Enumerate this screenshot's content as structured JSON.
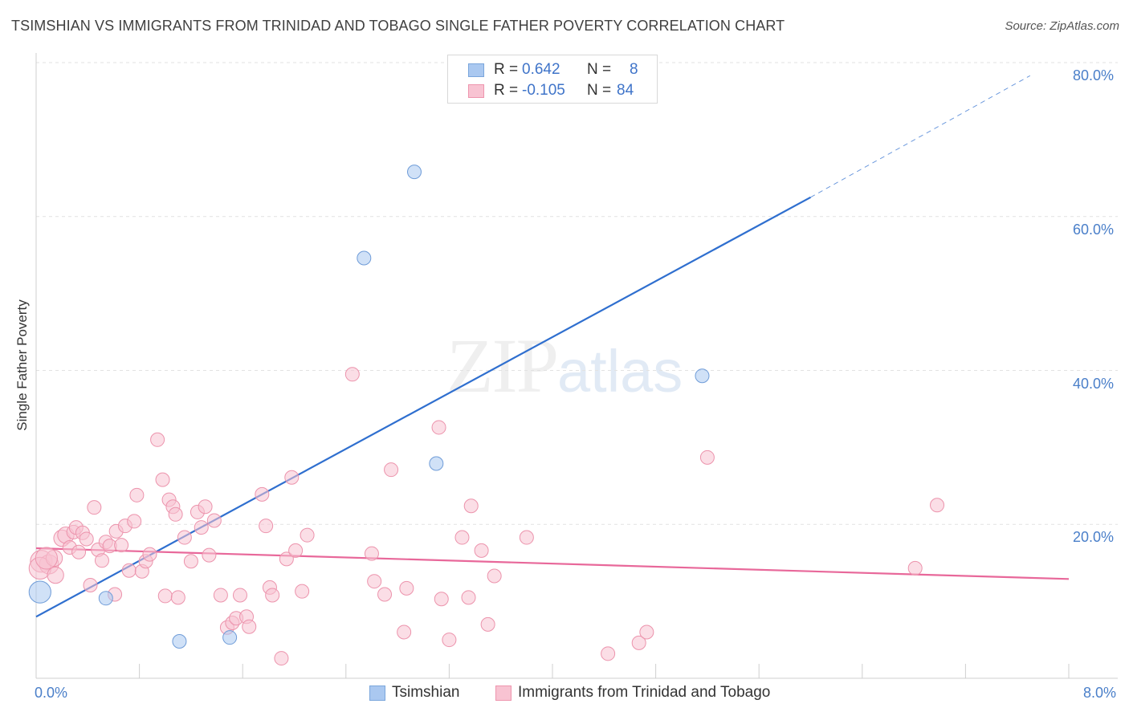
{
  "header": {
    "title": "TSIMSHIAN VS IMMIGRANTS FROM TRINIDAD AND TOBAGO SINGLE FATHER POVERTY CORRELATION CHART",
    "source": "Source: ZipAtlas.com"
  },
  "watermark": {
    "zip": "ZIP",
    "atlas": "atlas"
  },
  "stats": [
    {
      "r_label": "R =",
      "r_value": "0.642",
      "n_label": "N =",
      "n_value": "8",
      "color": "#aac8f0",
      "border": "#7aa6dc"
    },
    {
      "r_label": "R =",
      "r_value": "-0.105",
      "n_label": "N =",
      "n_value": "84",
      "color": "#f8c3d2",
      "border": "#ee95ae"
    }
  ],
  "legend": [
    {
      "label": "Tsimshian",
      "color": "#aac8f0",
      "border": "#7aa6dc"
    },
    {
      "label": "Immigrants from Trinidad and Tobago",
      "color": "#f8c3d2",
      "border": "#ee95ae"
    }
  ],
  "chart_data": {
    "type": "scatter",
    "title": "TSIMSHIAN VS IMMIGRANTS FROM TRINIDAD AND TOBAGO SINGLE FATHER POVERTY CORRELATION CHART",
    "xlabel": "",
    "ylabel": "Single Father Poverty",
    "xlim": [
      0,
      8
    ],
    "ylim": [
      0,
      80
    ],
    "x_tick_labels": [
      "0.0%",
      "8.0%"
    ],
    "y_tick_values": [
      20,
      40,
      60,
      80
    ],
    "y_tick_labels": [
      "20.0%",
      "40.0%",
      "60.0%",
      "80.0%"
    ],
    "grid": true,
    "legend_position": "bottom",
    "series": [
      {
        "name": "Tsimshian",
        "color": "#aac8f0",
        "stroke": "#6f9cd8",
        "trend_color": "#2f6fcf",
        "trend": {
          "x0": 0,
          "y0": 8.0,
          "x1": 6.0,
          "y1": 62.5,
          "dash_to_x": 7.7,
          "dash_to_y": 78.3
        },
        "points": [
          [
            0.03,
            11.2,
            1.6
          ],
          [
            0.54,
            10.4,
            1
          ],
          [
            1.11,
            4.8,
            1
          ],
          [
            1.5,
            5.3,
            1
          ],
          [
            2.54,
            54.6,
            1
          ],
          [
            2.93,
            65.8,
            1
          ],
          [
            3.1,
            27.9,
            1
          ],
          [
            5.16,
            39.3,
            1
          ]
        ]
      },
      {
        "name": "Immigrants from Trinidad and Tobago",
        "color": "#f8c3d2",
        "stroke": "#ec93ac",
        "trend_color": "#e8689a",
        "trend": {
          "x0": 0,
          "y0": 16.9,
          "x1": 8.0,
          "y1": 12.9
        },
        "points": [
          [
            0.04,
            15.2,
            1.6
          ],
          [
            0.1,
            14.8,
            1.4
          ],
          [
            0.03,
            14.3,
            1.6
          ],
          [
            0.15,
            13.4,
            1.2
          ],
          [
            0.14,
            15.6,
            1.2
          ],
          [
            0.2,
            18.2,
            1.2
          ],
          [
            0.23,
            18.6,
            1.2
          ],
          [
            0.26,
            17.0,
            1
          ],
          [
            0.29,
            19.0,
            1
          ],
          [
            0.31,
            19.6,
            1
          ],
          [
            0.33,
            16.4,
            1
          ],
          [
            0.36,
            18.9,
            1
          ],
          [
            0.39,
            18.1,
            1
          ],
          [
            0.42,
            12.1,
            1
          ],
          [
            0.45,
            22.2,
            1
          ],
          [
            0.48,
            16.7,
            1
          ],
          [
            0.51,
            15.3,
            1
          ],
          [
            0.54,
            17.7,
            1
          ],
          [
            0.57,
            17.2,
            1
          ],
          [
            0.61,
            10.9,
            1
          ],
          [
            0.62,
            19.1,
            1
          ],
          [
            0.66,
            17.3,
            1
          ],
          [
            0.69,
            19.8,
            1
          ],
          [
            0.72,
            14.0,
            1
          ],
          [
            0.76,
            20.4,
            1
          ],
          [
            0.78,
            23.8,
            1
          ],
          [
            0.82,
            13.9,
            1
          ],
          [
            0.85,
            15.2,
            1
          ],
          [
            0.88,
            16.1,
            1
          ],
          [
            0.94,
            31.0,
            1
          ],
          [
            0.98,
            25.8,
            1
          ],
          [
            1.0,
            10.7,
            1
          ],
          [
            1.03,
            23.2,
            1
          ],
          [
            1.06,
            22.3,
            1
          ],
          [
            1.08,
            21.3,
            1
          ],
          [
            1.1,
            10.5,
            1
          ],
          [
            1.15,
            18.3,
            1
          ],
          [
            1.2,
            15.2,
            1
          ],
          [
            1.25,
            21.6,
            1
          ],
          [
            1.28,
            19.6,
            1
          ],
          [
            1.31,
            22.3,
            1
          ],
          [
            1.34,
            16.0,
            1
          ],
          [
            1.38,
            20.5,
            1
          ],
          [
            1.43,
            10.8,
            1
          ],
          [
            1.48,
            6.6,
            1
          ],
          [
            1.52,
            7.2,
            1
          ],
          [
            1.55,
            7.8,
            1
          ],
          [
            1.58,
            10.8,
            1
          ],
          [
            1.63,
            8.0,
            1
          ],
          [
            1.65,
            6.7,
            1
          ],
          [
            1.75,
            23.9,
            1
          ],
          [
            1.78,
            19.8,
            1
          ],
          [
            1.81,
            11.8,
            1
          ],
          [
            1.83,
            10.8,
            1
          ],
          [
            1.9,
            2.6,
            1
          ],
          [
            1.94,
            15.5,
            1
          ],
          [
            1.98,
            26.1,
            1
          ],
          [
            2.01,
            16.6,
            1
          ],
          [
            2.06,
            11.3,
            1
          ],
          [
            2.1,
            18.6,
            1
          ],
          [
            2.45,
            39.5,
            1
          ],
          [
            2.6,
            16.2,
            1
          ],
          [
            2.62,
            12.6,
            1
          ],
          [
            2.7,
            10.9,
            1
          ],
          [
            2.75,
            27.1,
            1
          ],
          [
            2.85,
            6.0,
            1
          ],
          [
            2.87,
            11.7,
            1
          ],
          [
            3.12,
            32.6,
            1
          ],
          [
            3.14,
            10.3,
            1
          ],
          [
            3.2,
            5.0,
            1
          ],
          [
            3.3,
            18.3,
            1
          ],
          [
            3.35,
            10.5,
            1
          ],
          [
            3.37,
            22.4,
            1
          ],
          [
            3.45,
            16.6,
            1
          ],
          [
            3.5,
            7.0,
            1
          ],
          [
            3.55,
            13.3,
            1
          ],
          [
            3.8,
            18.3,
            1
          ],
          [
            4.43,
            3.2,
            1
          ],
          [
            4.67,
            4.6,
            1
          ],
          [
            4.73,
            6.0,
            1
          ],
          [
            5.2,
            28.7,
            1
          ],
          [
            6.81,
            14.3,
            1
          ],
          [
            6.98,
            22.5,
            1
          ],
          [
            0.08,
            15.6,
            1.6
          ]
        ]
      }
    ]
  }
}
